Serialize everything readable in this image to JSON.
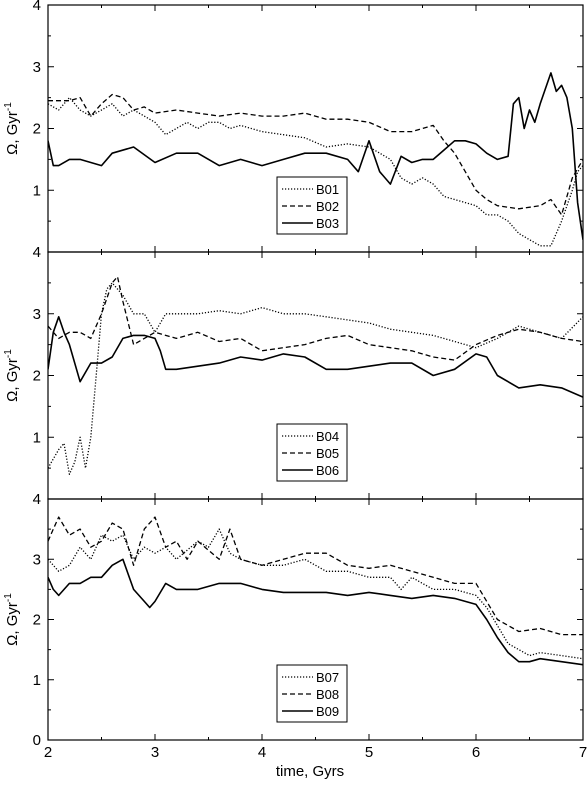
{
  "chart_data": {
    "type": "line",
    "xlabel": "time, Gyrs",
    "xlim": [
      2,
      7
    ],
    "x_ticks": [
      "2",
      "3",
      "4",
      "5",
      "6",
      "7"
    ],
    "grid": false,
    "legend_position": "bottom-center",
    "panels": [
      {
        "ylabel": "Ω, Gyr",
        "ylabel_sup": "-1",
        "ylim": [
          0,
          4
        ],
        "y_ticks": [
          "1",
          "2",
          "3",
          "4"
        ],
        "series": [
          {
            "name": "B01",
            "style": "dotted",
            "x": [
              2.0,
              2.1,
              2.2,
              2.3,
              2.4,
              2.5,
              2.6,
              2.7,
              2.8,
              2.9,
              3.0,
              3.1,
              3.2,
              3.3,
              3.4,
              3.5,
              3.6,
              3.7,
              3.8,
              3.9,
              4.0,
              4.2,
              4.4,
              4.6,
              4.8,
              5.0,
              5.2,
              5.3,
              5.4,
              5.5,
              5.6,
              5.7,
              5.8,
              5.9,
              6.0,
              6.1,
              6.2,
              6.3,
              6.4,
              6.5,
              6.6,
              6.7,
              6.8,
              6.9,
              6.95,
              7.0
            ],
            "y": [
              2.4,
              2.3,
              2.5,
              2.3,
              2.2,
              2.3,
              2.4,
              2.2,
              2.3,
              2.2,
              2.1,
              1.9,
              2.0,
              2.1,
              2.0,
              2.1,
              2.1,
              2.0,
              2.05,
              2.0,
              1.95,
              1.9,
              1.85,
              1.7,
              1.75,
              1.7,
              1.5,
              1.2,
              1.1,
              1.2,
              1.1,
              0.9,
              0.85,
              0.8,
              0.75,
              0.6,
              0.6,
              0.5,
              0.3,
              0.2,
              0.1,
              0.1,
              0.5,
              1.0,
              1.3,
              1.4
            ]
          },
          {
            "name": "B02",
            "style": "dashed",
            "x": [
              2.0,
              2.1,
              2.2,
              2.3,
              2.4,
              2.5,
              2.6,
              2.7,
              2.8,
              2.9,
              3.0,
              3.2,
              3.4,
              3.6,
              3.8,
              4.0,
              4.2,
              4.4,
              4.6,
              4.8,
              5.0,
              5.2,
              5.4,
              5.5,
              5.6,
              5.7,
              5.8,
              5.9,
              6.0,
              6.1,
              6.2,
              6.4,
              6.6,
              6.7,
              6.8,
              6.9,
              7.0
            ],
            "y": [
              2.45,
              2.45,
              2.45,
              2.5,
              2.2,
              2.4,
              2.55,
              2.5,
              2.3,
              2.35,
              2.25,
              2.3,
              2.25,
              2.2,
              2.25,
              2.2,
              2.2,
              2.25,
              2.15,
              2.15,
              2.1,
              1.95,
              1.95,
              2.0,
              2.05,
              1.8,
              1.6,
              1.3,
              1.0,
              0.85,
              0.75,
              0.7,
              0.75,
              0.85,
              0.6,
              1.2,
              1.5
            ]
          },
          {
            "name": "B03",
            "style": "solid",
            "x": [
              2.0,
              2.05,
              2.1,
              2.2,
              2.3,
              2.4,
              2.5,
              2.6,
              2.8,
              3.0,
              3.2,
              3.4,
              3.6,
              3.8,
              4.0,
              4.2,
              4.4,
              4.6,
              4.8,
              4.9,
              5.0,
              5.1,
              5.2,
              5.3,
              5.4,
              5.5,
              5.6,
              5.7,
              5.8,
              5.9,
              6.0,
              6.1,
              6.2,
              6.3,
              6.35,
              6.4,
              6.45,
              6.5,
              6.55,
              6.6,
              6.7,
              6.75,
              6.8,
              6.85,
              6.9,
              6.95,
              7.0
            ],
            "y": [
              1.8,
              1.4,
              1.4,
              1.5,
              1.5,
              1.45,
              1.4,
              1.6,
              1.7,
              1.45,
              1.6,
              1.6,
              1.4,
              1.5,
              1.4,
              1.5,
              1.6,
              1.6,
              1.5,
              1.3,
              1.8,
              1.3,
              1.1,
              1.55,
              1.45,
              1.5,
              1.5,
              1.65,
              1.8,
              1.8,
              1.75,
              1.6,
              1.5,
              1.55,
              2.4,
              2.5,
              2.0,
              2.3,
              2.1,
              2.4,
              2.9,
              2.6,
              2.7,
              2.5,
              2.0,
              0.8,
              0.2
            ]
          }
        ]
      },
      {
        "ylabel": "Ω, Gyr",
        "ylabel_sup": "-1",
        "ylim": [
          0,
          4
        ],
        "y_ticks": [
          "1",
          "2",
          "3",
          "4"
        ],
        "series": [
          {
            "name": "B04",
            "style": "dotted",
            "x": [
              2.0,
              2.05,
              2.1,
              2.15,
              2.2,
              2.25,
              2.3,
              2.35,
              2.4,
              2.45,
              2.5,
              2.55,
              2.6,
              2.7,
              2.8,
              2.9,
              3.0,
              3.1,
              3.2,
              3.4,
              3.6,
              3.8,
              4.0,
              4.2,
              4.4,
              4.6,
              4.8,
              5.0,
              5.2,
              5.4,
              5.6,
              5.8,
              6.0,
              6.2,
              6.4,
              6.6,
              6.8,
              7.0
            ],
            "y": [
              0.5,
              0.65,
              0.8,
              0.9,
              0.4,
              0.6,
              1.0,
              0.5,
              1.0,
              2.0,
              3.0,
              3.4,
              3.5,
              3.3,
              3.0,
              3.0,
              2.7,
              3.0,
              3.0,
              3.0,
              3.05,
              3.0,
              3.1,
              3.0,
              3.0,
              2.95,
              2.9,
              2.85,
              2.75,
              2.7,
              2.65,
              2.55,
              2.45,
              2.6,
              2.8,
              2.7,
              2.6,
              2.95
            ]
          },
          {
            "name": "B05",
            "style": "dashed",
            "x": [
              2.0,
              2.1,
              2.2,
              2.3,
              2.4,
              2.5,
              2.6,
              2.65,
              2.7,
              2.8,
              2.9,
              3.0,
              3.2,
              3.4,
              3.6,
              3.8,
              4.0,
              4.2,
              4.4,
              4.6,
              4.8,
              5.0,
              5.2,
              5.4,
              5.6,
              5.8,
              6.0,
              6.2,
              6.4,
              6.6,
              6.8,
              7.0
            ],
            "y": [
              2.8,
              2.6,
              2.7,
              2.7,
              2.6,
              3.0,
              3.5,
              3.6,
              3.2,
              2.5,
              2.6,
              2.7,
              2.6,
              2.7,
              2.55,
              2.6,
              2.4,
              2.45,
              2.5,
              2.6,
              2.65,
              2.5,
              2.45,
              2.4,
              2.3,
              2.25,
              2.5,
              2.65,
              2.75,
              2.7,
              2.6,
              2.55
            ]
          },
          {
            "name": "B06",
            "style": "solid",
            "x": [
              2.0,
              2.05,
              2.1,
              2.15,
              2.2,
              2.3,
              2.4,
              2.5,
              2.6,
              2.7,
              2.8,
              2.9,
              3.0,
              3.05,
              3.1,
              3.2,
              3.4,
              3.6,
              3.8,
              4.0,
              4.2,
              4.4,
              4.6,
              4.8,
              5.0,
              5.2,
              5.4,
              5.6,
              5.8,
              6.0,
              6.1,
              6.2,
              6.4,
              6.6,
              6.8,
              7.0
            ],
            "y": [
              2.1,
              2.7,
              2.95,
              2.7,
              2.5,
              1.9,
              2.2,
              2.2,
              2.3,
              2.6,
              2.65,
              2.65,
              2.6,
              2.4,
              2.1,
              2.1,
              2.15,
              2.2,
              2.3,
              2.25,
              2.35,
              2.3,
              2.1,
              2.1,
              2.15,
              2.2,
              2.2,
              2.0,
              2.1,
              2.35,
              2.3,
              2.0,
              1.8,
              1.85,
              1.8,
              1.65
            ]
          }
        ]
      },
      {
        "ylabel": "Ω, Gyr",
        "ylabel_sup": "-1",
        "ylim": [
          0,
          4
        ],
        "y_ticks": [
          "0",
          "1",
          "2",
          "3",
          "4"
        ],
        "series": [
          {
            "name": "B07",
            "style": "dotted",
            "x": [
              2.0,
              2.1,
              2.2,
              2.3,
              2.4,
              2.5,
              2.6,
              2.7,
              2.8,
              2.9,
              3.0,
              3.1,
              3.2,
              3.4,
              3.5,
              3.6,
              3.7,
              3.8,
              4.0,
              4.2,
              4.4,
              4.6,
              4.8,
              5.0,
              5.2,
              5.3,
              5.4,
              5.5,
              5.6,
              5.8,
              6.0,
              6.1,
              6.2,
              6.3,
              6.4,
              6.5,
              6.6,
              6.8,
              7.0
            ],
            "y": [
              3.0,
              2.8,
              2.9,
              3.2,
              3.0,
              3.4,
              3.3,
              3.4,
              3.0,
              3.2,
              3.1,
              3.2,
              3.0,
              3.3,
              3.2,
              3.5,
              3.1,
              3.0,
              2.9,
              2.9,
              3.0,
              2.8,
              2.8,
              2.7,
              2.7,
              2.5,
              2.7,
              2.6,
              2.5,
              2.5,
              2.4,
              2.2,
              1.9,
              1.6,
              1.5,
              1.4,
              1.45,
              1.4,
              1.35
            ]
          },
          {
            "name": "B08",
            "style": "dashed",
            "x": [
              2.0,
              2.05,
              2.1,
              2.2,
              2.3,
              2.4,
              2.5,
              2.6,
              2.7,
              2.8,
              2.9,
              3.0,
              3.1,
              3.2,
              3.3,
              3.4,
              3.6,
              3.7,
              3.8,
              4.0,
              4.2,
              4.4,
              4.6,
              4.8,
              5.0,
              5.2,
              5.4,
              5.6,
              5.8,
              6.0,
              6.1,
              6.2,
              6.4,
              6.6,
              6.8,
              7.0
            ],
            "y": [
              3.3,
              3.5,
              3.7,
              3.4,
              3.5,
              3.2,
              3.3,
              3.6,
              3.5,
              2.9,
              3.5,
              3.7,
              3.2,
              3.3,
              3.0,
              3.3,
              3.0,
              3.5,
              3.0,
              2.9,
              3.0,
              3.1,
              3.1,
              2.9,
              2.85,
              2.9,
              2.8,
              2.7,
              2.6,
              2.6,
              2.3,
              2.0,
              1.8,
              1.85,
              1.75,
              1.75
            ]
          },
          {
            "name": "B09",
            "style": "solid",
            "x": [
              2.0,
              2.05,
              2.1,
              2.2,
              2.3,
              2.4,
              2.5,
              2.6,
              2.7,
              2.8,
              2.9,
              2.95,
              3.0,
              3.1,
              3.2,
              3.4,
              3.6,
              3.8,
              4.0,
              4.2,
              4.4,
              4.6,
              4.8,
              5.0,
              5.2,
              5.4,
              5.6,
              5.8,
              6.0,
              6.1,
              6.2,
              6.3,
              6.4,
              6.5,
              6.6,
              6.8,
              7.0
            ],
            "y": [
              2.7,
              2.5,
              2.4,
              2.6,
              2.6,
              2.7,
              2.7,
              2.9,
              3.0,
              2.5,
              2.3,
              2.2,
              2.3,
              2.6,
              2.5,
              2.5,
              2.6,
              2.6,
              2.5,
              2.45,
              2.45,
              2.45,
              2.4,
              2.45,
              2.4,
              2.35,
              2.4,
              2.35,
              2.25,
              2.0,
              1.7,
              1.45,
              1.3,
              1.3,
              1.35,
              1.3,
              1.25
            ]
          }
        ]
      }
    ]
  }
}
